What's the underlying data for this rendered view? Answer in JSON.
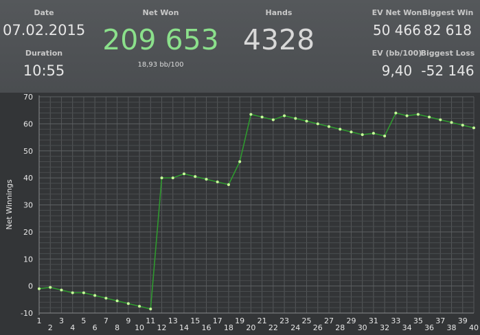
{
  "stats": {
    "date": {
      "label": "Date",
      "value": "07.02.2015"
    },
    "duration": {
      "label": "Duration",
      "value": "10:55"
    },
    "net_won": {
      "label": "Net Won",
      "value": "209 653",
      "sub": "18,93 bb/100"
    },
    "hands": {
      "label": "Hands",
      "value": "4328"
    },
    "ev_net_won": {
      "label": "EV Net Won",
      "value": "50 466"
    },
    "biggest_win": {
      "label": "Biggest Win",
      "value": "82 618"
    },
    "ev_bb100": {
      "label": "EV (bb/100)",
      "value": "9,40"
    },
    "biggest_loss": {
      "label": "Biggest Loss",
      "value": "-52 146"
    }
  },
  "colors": {
    "net_won": "#8be08b",
    "line": "#2f9a2f",
    "point": "#c8ff9a"
  },
  "chart_data": {
    "type": "line",
    "ylabel": "Net Winnings",
    "xlabel": "",
    "x": [
      1,
      2,
      3,
      4,
      5,
      6,
      7,
      8,
      9,
      10,
      11,
      12,
      13,
      14,
      15,
      16,
      17,
      18,
      19,
      20,
      21,
      22,
      23,
      24,
      25,
      26,
      27,
      28,
      29,
      30,
      31,
      32,
      33,
      34,
      35,
      36,
      37,
      38,
      39,
      40
    ],
    "x_tick_labels": [
      "1",
      "2",
      "3",
      "4",
      "5",
      "6",
      "7",
      "8",
      "9",
      "10",
      "11",
      "12",
      "13",
      "14",
      "15",
      "16",
      "17",
      "18",
      "19",
      "20",
      "21",
      "22",
      "23",
      "24",
      "25",
      "26",
      "27",
      "28",
      "29",
      "30",
      "31",
      "32",
      "33",
      "34",
      "35",
      "36",
      "37",
      "38",
      "39",
      "40"
    ],
    "y_ticks": [
      "70",
      "60",
      "50",
      "40",
      "30",
      "20",
      "10",
      "0",
      "-10"
    ],
    "ylim": [
      -10,
      70
    ],
    "xlim": [
      1,
      40
    ],
    "grid": true,
    "series": [
      {
        "values": [
          -1,
          -0.5,
          -1.5,
          -2.5,
          -2.5,
          -3.5,
          -4.5,
          -5.5,
          -6.5,
          -7.5,
          -8.5,
          40,
          40,
          41.5,
          40.5,
          39.5,
          38.5,
          37.5,
          46,
          63.5,
          62.5,
          61.5,
          63,
          62,
          61,
          60,
          59,
          58,
          57,
          56,
          56.5,
          55.5,
          64,
          63,
          63.5,
          62.5,
          61.5,
          60.5,
          59.5,
          58.5
        ]
      }
    ]
  }
}
